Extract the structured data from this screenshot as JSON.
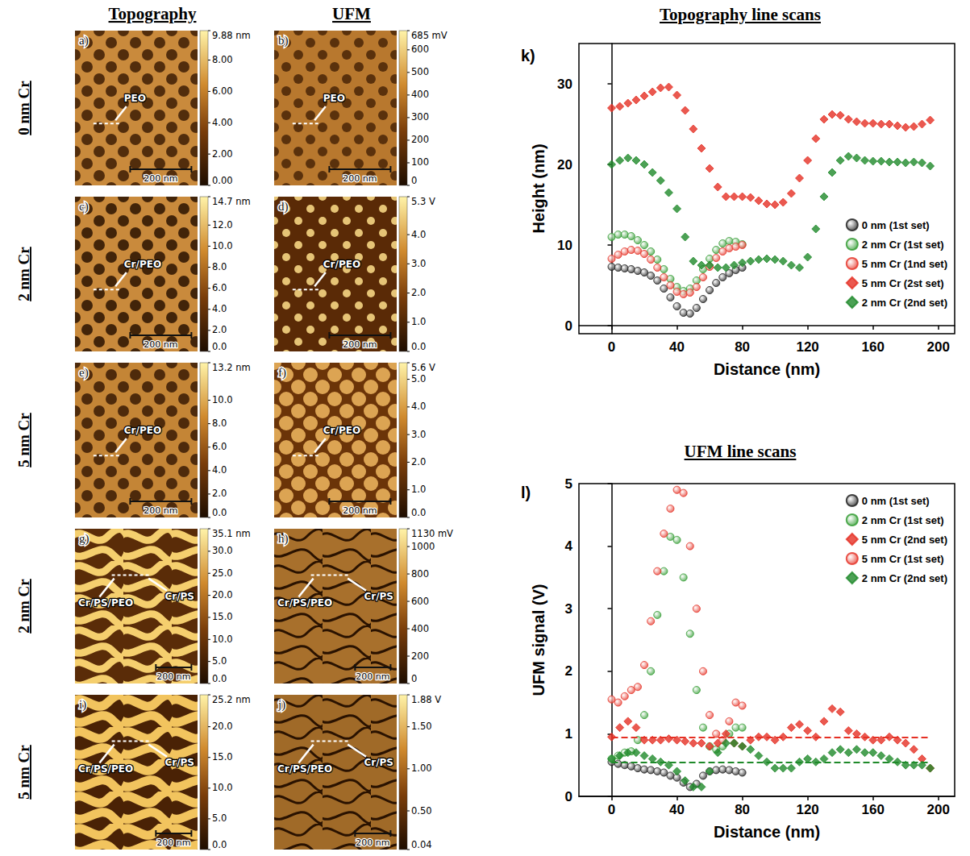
{
  "column_heads": [
    "Topography",
    "UFM"
  ],
  "row_labels": [
    "0 nm Cr",
    "2 nm Cr",
    "5 nm Cr",
    "2 nm Cr",
    "5 nm Cr"
  ],
  "images": [
    {
      "letter": "a)",
      "annotations": [
        "PEO"
      ],
      "scale_bar": "200 nm",
      "colorbar": {
        "range": [
          0,
          9.88
        ],
        "ticks": [
          {
            "value": 9.88,
            "label": "9.88 nm"
          },
          {
            "value": 8,
            "label": "8.00"
          },
          {
            "value": 6,
            "label": "6.00"
          },
          {
            "value": 4,
            "label": "4.00"
          },
          {
            "value": 2,
            "label": "2.00"
          },
          {
            "value": 0,
            "label": "0.00"
          }
        ]
      }
    },
    {
      "letter": "b)",
      "annotations": [
        "PEO"
      ],
      "scale_bar": "200 nm",
      "colorbar": {
        "range": [
          0,
          685
        ],
        "ticks": [
          {
            "value": 685,
            "label": "685 mV"
          },
          600,
          500,
          400,
          300,
          200,
          100,
          0
        ]
      }
    },
    {
      "letter": "c)",
      "annotations": [
        "Cr/PEO"
      ],
      "scale_bar": "200 nm",
      "colorbar": {
        "range": [
          0,
          14.7
        ],
        "ticks": [
          {
            "value": 14.7,
            "label": "14.7 nm"
          },
          {
            "value": 12,
            "label": "12.0"
          },
          {
            "value": 10,
            "label": "10.0"
          },
          {
            "value": 8,
            "label": "8.0"
          },
          {
            "value": 6,
            "label": "6.0"
          },
          {
            "value": 4,
            "label": "4.0"
          },
          {
            "value": 2,
            "label": "2.0"
          },
          {
            "value": 0,
            "label": "0.0"
          }
        ]
      }
    },
    {
      "letter": "d)",
      "annotations": [
        "Cr/PEO"
      ],
      "scale_bar": "200 nm",
      "colorbar": {
        "range": [
          0,
          5.3
        ],
        "ticks": [
          {
            "value": 5.3,
            "label": "5.3 V"
          },
          {
            "value": 4,
            "label": "4.0"
          },
          {
            "value": 3,
            "label": "3.0"
          },
          {
            "value": 2,
            "label": "2.0"
          },
          {
            "value": 1,
            "label": "1.0"
          },
          {
            "value": 0,
            "label": "0.0"
          }
        ]
      }
    },
    {
      "letter": "e)",
      "annotations": [
        "Cr/PEO"
      ],
      "scale_bar": "200 nm",
      "colorbar": {
        "range": [
          0,
          13.2
        ],
        "ticks": [
          {
            "value": 13.2,
            "label": "13.2 nm"
          },
          {
            "value": 10,
            "label": "10.0"
          },
          {
            "value": 8,
            "label": "8.0"
          },
          {
            "value": 6,
            "label": "6.0"
          },
          {
            "value": 4,
            "label": "4.0"
          },
          {
            "value": 2,
            "label": "2.0"
          },
          {
            "value": 0,
            "label": "0.0"
          }
        ]
      }
    },
    {
      "letter": "f)",
      "annotations": [
        "Cr/PEO"
      ],
      "scale_bar": "200 nm",
      "colorbar": {
        "range": [
          0,
          5.6
        ],
        "ticks": [
          {
            "value": 5.6,
            "label": "5.6 V"
          },
          {
            "value": 5,
            "label": "5.0"
          },
          {
            "value": 4,
            "label": "4.0"
          },
          {
            "value": 3,
            "label": "3.0"
          },
          {
            "value": 2,
            "label": "2.0"
          },
          {
            "value": 1,
            "label": "1.0"
          },
          {
            "value": 0,
            "label": "0.0"
          }
        ]
      }
    },
    {
      "letter": "g)",
      "annotations": [
        "Cr/PS/PEO",
        "Cr/PS"
      ],
      "scale_bar": "200 nm",
      "colorbar": {
        "range": [
          0,
          35.1
        ],
        "ticks": [
          {
            "value": 35.1,
            "label": "35.1 nm"
          },
          {
            "value": 30,
            "label": "30.0"
          },
          {
            "value": 25,
            "label": "25.0"
          },
          {
            "value": 20,
            "label": "20.0"
          },
          {
            "value": 15,
            "label": "15.0"
          },
          {
            "value": 10,
            "label": "10.0"
          },
          {
            "value": 5,
            "label": "5.0"
          },
          {
            "value": 0,
            "label": "0.0"
          }
        ]
      }
    },
    {
      "letter": "h)",
      "annotations": [
        "Cr/PS/PEO",
        "Cr/PS"
      ],
      "scale_bar": "200 nm",
      "colorbar": {
        "range": [
          0,
          1130
        ],
        "ticks": [
          {
            "value": 1130,
            "label": "1130 mV"
          },
          1000,
          800,
          600,
          400,
          200,
          0
        ]
      }
    },
    {
      "letter": "i)",
      "annotations": [
        "Cr/PS/PEO",
        "Cr/PS"
      ],
      "scale_bar": "200 nm",
      "colorbar": {
        "range": [
          0,
          25.2
        ],
        "ticks": [
          {
            "value": 25.2,
            "label": "25.2 nm"
          },
          {
            "value": 20,
            "label": "20.0"
          },
          {
            "value": 15,
            "label": "15.0"
          },
          {
            "value": 10,
            "label": "10.0"
          },
          {
            "value": 5,
            "label": "5.0"
          },
          {
            "value": 0,
            "label": "0.0"
          }
        ]
      }
    },
    {
      "letter": "j)",
      "annotations": [
        "Cr/PS/PEO",
        "Cr/PS"
      ],
      "scale_bar": "200 nm",
      "colorbar": {
        "range": [
          0.04,
          1.88
        ],
        "ticks": [
          {
            "value": 1.88,
            "label": "1.88 V"
          },
          {
            "value": 1.5,
            "label": "1.50"
          },
          {
            "value": 1,
            "label": "1.00"
          },
          {
            "value": 0.5,
            "label": "0.50"
          },
          0.04
        ]
      }
    }
  ],
  "chart_data": [
    {
      "type": "scatter",
      "panel_label": "k)",
      "title": "Topography line scans",
      "x_label": "Distance (nm)",
      "y_label": "Height (nm)",
      "xlim": [
        -20,
        210
      ],
      "xticks": [
        0,
        40,
        80,
        120,
        160,
        200
      ],
      "ylim": [
        -1,
        35
      ],
      "yticks": [
        0,
        10,
        20,
        30
      ],
      "grid": false,
      "legend": "right",
      "series": [
        {
          "name": "0 nm (1st set)",
          "color": "#1a1a1a",
          "marker": "circle",
          "x": [
            0,
            4,
            8,
            12,
            16,
            20,
            24,
            28,
            32,
            36,
            40,
            44,
            48,
            52,
            56,
            60,
            64,
            68,
            72,
            76,
            80
          ],
          "values": [
            7.3,
            7.2,
            7.1,
            7.0,
            6.8,
            6.6,
            6.2,
            5.6,
            4.6,
            3.5,
            2.4,
            1.6,
            1.5,
            2.2,
            3.3,
            4.4,
            5.3,
            6.0,
            6.5,
            6.9,
            7.2
          ]
        },
        {
          "name": "2 nm Cr (1st set)",
          "color": "#2e9a2e",
          "marker": "circle",
          "x": [
            0,
            4,
            8,
            12,
            16,
            20,
            24,
            28,
            32,
            36,
            40,
            44,
            48,
            52,
            56,
            60,
            64,
            68,
            72,
            76,
            80
          ],
          "values": [
            11.0,
            11.3,
            11.3,
            11.1,
            10.6,
            10.0,
            9.2,
            8.2,
            7.0,
            5.8,
            4.8,
            4.3,
            4.6,
            5.6,
            7.0,
            8.3,
            9.4,
            10.2,
            10.5,
            10.4,
            10.1
          ]
        },
        {
          "name": "5 nm Cr (1nd set)",
          "color": "#e53024",
          "marker": "circle",
          "x": [
            0,
            4,
            8,
            12,
            16,
            20,
            24,
            28,
            32,
            36,
            40,
            44,
            48,
            52,
            56,
            60,
            64,
            68,
            72,
            76,
            80
          ],
          "values": [
            8.3,
            8.8,
            9.2,
            9.4,
            9.3,
            8.9,
            8.2,
            7.2,
            6.0,
            5.0,
            4.2,
            3.9,
            4.1,
            4.8,
            6.0,
            7.3,
            8.4,
            9.2,
            9.6,
            9.8,
            10.0
          ]
        },
        {
          "name": "5 nm Cr (2st set)",
          "color": "#e53024",
          "marker": "diamond",
          "x": [
            0,
            5,
            10,
            15,
            20,
            25,
            30,
            35,
            40,
            45,
            50,
            55,
            60,
            65,
            70,
            75,
            80,
            85,
            90,
            95,
            100,
            105,
            110,
            115,
            120,
            125,
            130,
            135,
            140,
            145,
            150,
            155,
            160,
            165,
            170,
            175,
            180,
            185,
            190,
            195
          ],
          "values": [
            27.0,
            27.2,
            27.6,
            28.0,
            28.5,
            29.0,
            29.5,
            29.6,
            28.6,
            26.7,
            24.4,
            22.0,
            19.5,
            17.2,
            16.0,
            16.0,
            16.0,
            15.9,
            15.5,
            15.1,
            15.0,
            15.3,
            16.4,
            18.3,
            20.5,
            23.2,
            25.6,
            26.2,
            26.1,
            25.6,
            25.3,
            25.1,
            25.1,
            25.0,
            25.0,
            24.8,
            24.6,
            24.7,
            25.0,
            25.5
          ]
        },
        {
          "name": "2 nm Cr (2nd set)",
          "color": "#1f8a2a",
          "marker": "diamond",
          "x": [
            0,
            5,
            10,
            15,
            20,
            25,
            30,
            35,
            40,
            45,
            50,
            55,
            60,
            65,
            70,
            75,
            80,
            85,
            90,
            95,
            100,
            105,
            110,
            115,
            120,
            125,
            130,
            135,
            140,
            145,
            150,
            155,
            160,
            165,
            170,
            175,
            180,
            185,
            190,
            195
          ],
          "values": [
            20,
            20.5,
            20.8,
            20.5,
            20,
            19,
            18,
            16.5,
            14.5,
            11,
            8,
            7.5,
            7.5,
            7.2,
            7.2,
            7.5,
            7.8,
            8,
            8.2,
            8.3,
            8.2,
            8,
            7.5,
            7.2,
            8.5,
            12,
            16,
            19,
            20.5,
            21,
            20.8,
            20.5,
            20.4,
            20.4,
            20.3,
            20.3,
            20.2,
            20.3,
            20.2,
            19.8
          ]
        }
      ]
    },
    {
      "type": "scatter",
      "panel_label": "l)",
      "title": "UFM line scans",
      "x_label": "Distance (nm)",
      "y_label": "UFM signal (V)",
      "xlim": [
        -20,
        210
      ],
      "xticks": [
        0,
        40,
        80,
        120,
        160,
        200
      ],
      "ylim": [
        0,
        5
      ],
      "yticks": [
        0,
        1,
        2,
        3,
        4,
        5
      ],
      "grid": false,
      "legend": "upper right",
      "series": [
        {
          "name": "0 nm (1st set)",
          "color": "#1a1a1a",
          "marker": "circle",
          "x": [
            0,
            4,
            8,
            12,
            16,
            20,
            24,
            28,
            32,
            36,
            40,
            44,
            48,
            52,
            56,
            60,
            64,
            68,
            72,
            76,
            80
          ],
          "values": [
            0.55,
            0.52,
            0.5,
            0.48,
            0.45,
            0.43,
            0.42,
            0.4,
            0.38,
            0.33,
            0.3,
            0.22,
            0.15,
            0.2,
            0.33,
            0.4,
            0.42,
            0.43,
            0.42,
            0.4,
            0.38
          ]
        },
        {
          "name": "2 nm Cr (1st set)",
          "color": "#2e9a2e",
          "marker": "circle",
          "x": [
            0,
            4,
            8,
            12,
            16,
            20,
            24,
            28,
            32,
            36,
            40,
            44,
            48,
            52,
            56,
            60,
            64,
            68,
            72,
            76,
            80
          ],
          "values": [
            0.6,
            0.65,
            0.7,
            0.72,
            0.9,
            1.3,
            2.0,
            2.9,
            3.6,
            4.15,
            4.1,
            3.5,
            2.6,
            1.7,
            1.1,
            0.8,
            0.75,
            0.8,
            1.0,
            1.1,
            1.1
          ]
        },
        {
          "name": "5 nm Cr (2nd set)",
          "color": "#e53024",
          "marker": "diamond",
          "reference_line": {
            "value": 0.95,
            "line_style": "dashed"
          },
          "x": [
            0,
            5,
            10,
            15,
            20,
            25,
            30,
            35,
            40,
            45,
            50,
            55,
            60,
            65,
            70,
            75,
            80,
            85,
            90,
            95,
            100,
            105,
            110,
            115,
            120,
            125,
            130,
            135,
            140,
            145,
            150,
            155,
            160,
            165,
            170,
            175,
            180,
            185,
            190,
            195
          ],
          "values": [
            0.95,
            1.1,
            1.2,
            1.1,
            0.9,
            0.9,
            0.9,
            0.92,
            0.9,
            0.88,
            0.85,
            0.85,
            0.8,
            0.85,
            1.0,
            0.85,
            0.8,
            0.9,
            0.95,
            0.95,
            0.9,
            0.95,
            1.1,
            1.15,
            1.05,
            0.95,
            1.2,
            1.4,
            1.35,
            1.05,
            1.0,
            0.95,
            0.9,
            0.9,
            0.95,
            0.9,
            0.85,
            0.75,
            0.6,
            0.45
          ]
        },
        {
          "name": "5 nm Cr (1st set)",
          "color": "#e53024",
          "marker": "circle",
          "x": [
            0,
            4,
            8,
            12,
            16,
            20,
            24,
            28,
            32,
            36,
            40,
            44,
            48,
            52,
            56,
            60,
            64,
            68,
            72,
            76,
            80
          ],
          "values": [
            1.55,
            1.5,
            1.6,
            1.7,
            1.75,
            2.1,
            2.8,
            3.6,
            4.2,
            4.6,
            4.9,
            4.85,
            4.0,
            3.0,
            2.0,
            1.3,
            1.0,
            0.9,
            1.2,
            1.5,
            1.45
          ]
        },
        {
          "name": "2 nm Cr (2nd set)",
          "color": "#1f8a2a",
          "marker": "diamond",
          "reference_line": {
            "value": 0.55,
            "line_style": "dashed"
          },
          "x": [
            0,
            5,
            10,
            15,
            20,
            25,
            30,
            35,
            40,
            45,
            50,
            55,
            60,
            65,
            70,
            75,
            80,
            85,
            90,
            95,
            100,
            105,
            110,
            115,
            120,
            125,
            130,
            135,
            140,
            145,
            150,
            155,
            160,
            165,
            170,
            175,
            180,
            185,
            190,
            195
          ],
          "values": [
            0.6,
            0.65,
            0.7,
            0.7,
            0.65,
            0.6,
            0.55,
            0.5,
            0.4,
            0.25,
            0.15,
            0.15,
            0.4,
            0.7,
            0.85,
            0.85,
            0.8,
            0.75,
            0.65,
            0.55,
            0.45,
            0.45,
            0.45,
            0.55,
            0.6,
            0.55,
            0.6,
            0.7,
            0.75,
            0.7,
            0.75,
            0.7,
            0.7,
            0.65,
            0.6,
            0.55,
            0.5,
            0.5,
            0.5,
            0.45
          ]
        }
      ]
    }
  ]
}
